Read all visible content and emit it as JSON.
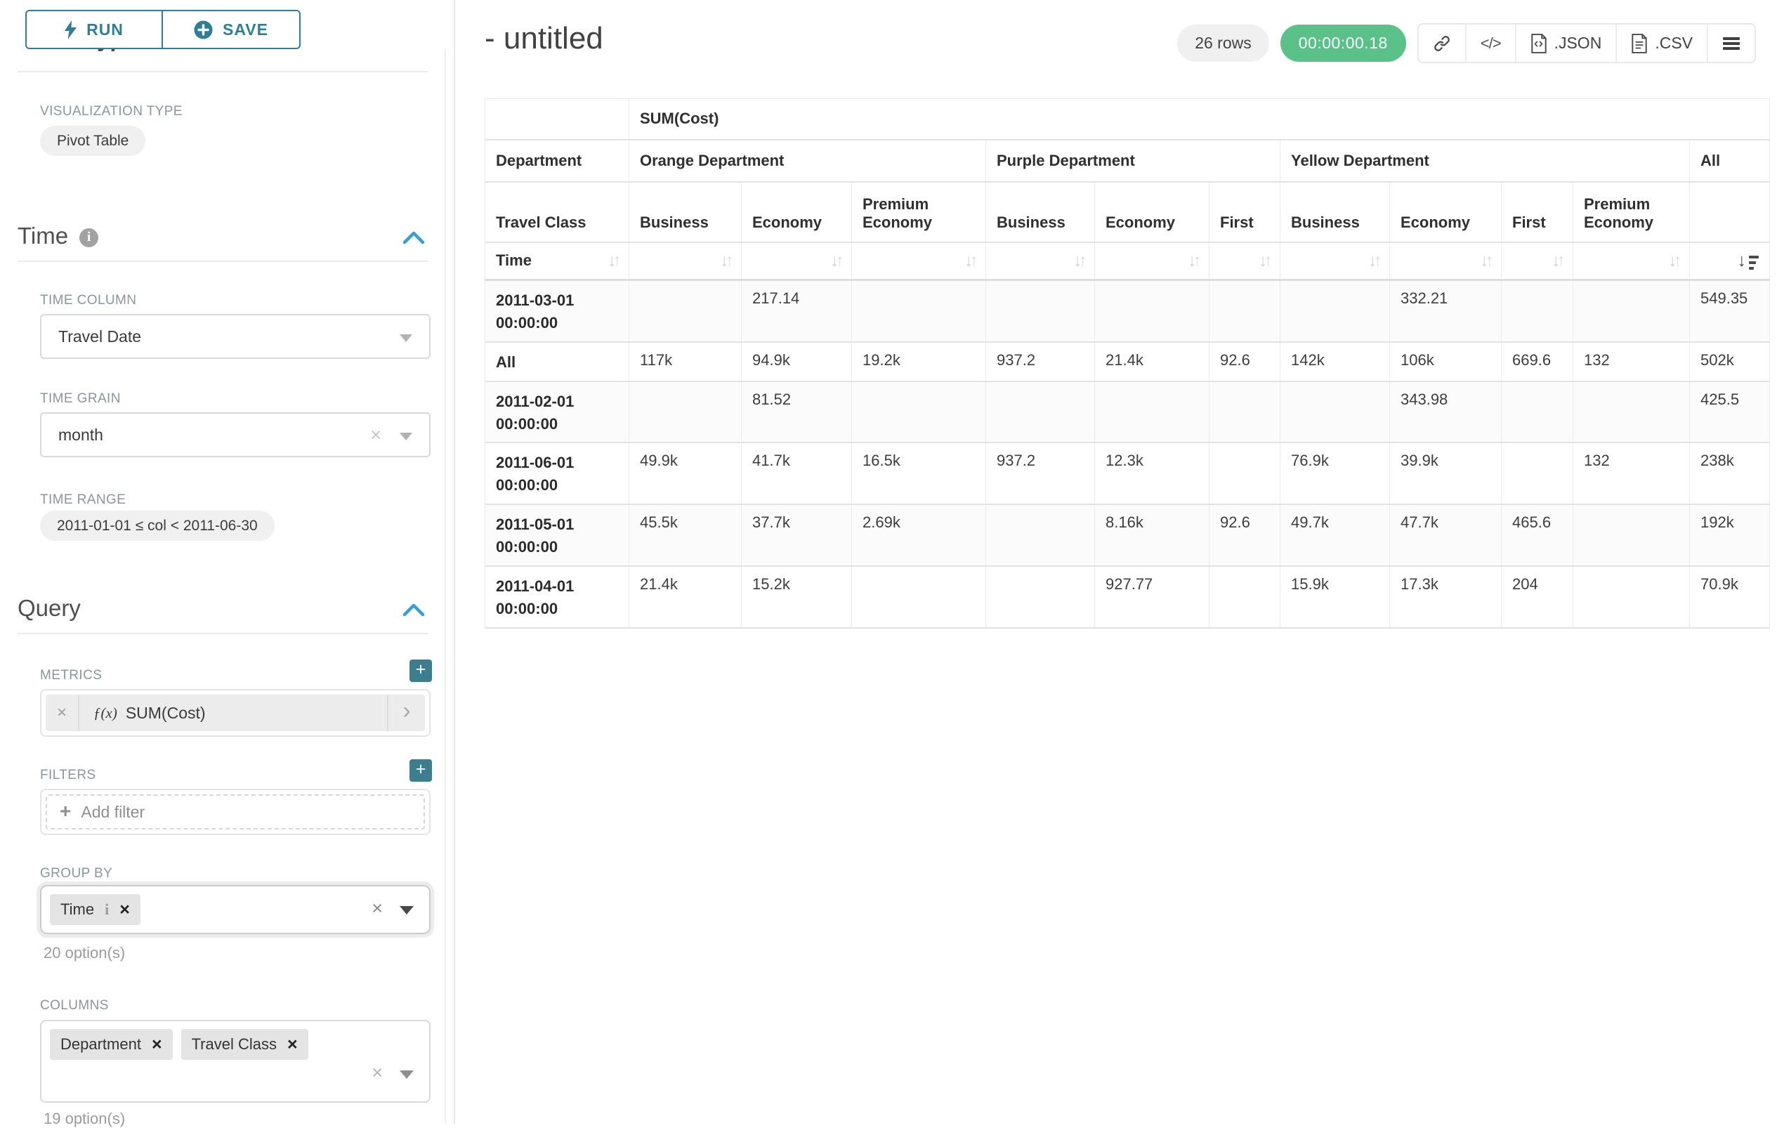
{
  "sidebar": {
    "run_label": "RUN",
    "save_label": "SAVE",
    "chart_type_heading": "Chart Type",
    "visualization_type_label": "VISUALIZATION TYPE",
    "visualization_type_value": "Pivot Table",
    "time_section": {
      "title": "Time",
      "time_column_label": "TIME COLUMN",
      "time_column_value": "Travel Date",
      "time_grain_label": "TIME GRAIN",
      "time_grain_value": "month",
      "time_range_label": "TIME RANGE",
      "time_range_value": "2011-01-01 ≤ col < 2011-06-30"
    },
    "query_section": {
      "title": "Query",
      "metrics_label": "METRICS",
      "metric_fx": "ƒ(x)",
      "metric_value": "SUM(Cost)",
      "filters_label": "FILTERS",
      "add_filter_label": "Add filter",
      "group_by_label": "GROUP BY",
      "group_by_tags": [
        "Time"
      ],
      "group_by_options_note": "20 option(s)",
      "columns_label": "COLUMNS",
      "columns_tags": [
        "Department",
        "Travel Class"
      ],
      "columns_options_note": "19 option(s)"
    }
  },
  "header": {
    "title": "- untitled",
    "row_count": "26 rows",
    "query_time": "00:00:00.18",
    "json_label": ".JSON",
    "csv_label": ".CSV"
  },
  "chart_data": {
    "type": "table",
    "metric_header": "SUM(Cost)",
    "row_header_labels": {
      "department": "Department",
      "travel_class": "Travel Class",
      "time": "Time"
    },
    "column_groups": [
      {
        "department": "Orange Department",
        "classes": [
          "Business",
          "Economy",
          "Premium Economy"
        ]
      },
      {
        "department": "Purple Department",
        "classes": [
          "Business",
          "Economy",
          "First"
        ]
      },
      {
        "department": "Yellow Department",
        "classes": [
          "Business",
          "Economy",
          "First",
          "Premium Economy"
        ]
      },
      {
        "department": "All",
        "classes": [
          ""
        ]
      }
    ],
    "rows": [
      {
        "time": "2011-03-01 00:00:00",
        "values": [
          "",
          "217.14",
          "",
          "",
          "",
          "",
          "",
          "332.21",
          "",
          "",
          "549.35"
        ]
      },
      {
        "time": "All",
        "values": [
          "117k",
          "94.9k",
          "19.2k",
          "937.2",
          "21.4k",
          "92.6",
          "142k",
          "106k",
          "669.6",
          "132",
          "502k"
        ]
      },
      {
        "time": "2011-02-01 00:00:00",
        "values": [
          "",
          "81.52",
          "",
          "",
          "",
          "",
          "",
          "343.98",
          "",
          "",
          "425.5"
        ]
      },
      {
        "time": "2011-06-01 00:00:00",
        "values": [
          "49.9k",
          "41.7k",
          "16.5k",
          "937.2",
          "12.3k",
          "",
          "76.9k",
          "39.9k",
          "",
          "132",
          "238k"
        ]
      },
      {
        "time": "2011-05-01 00:00:00",
        "values": [
          "45.5k",
          "37.7k",
          "2.69k",
          "",
          "8.16k",
          "92.6",
          "49.7k",
          "47.7k",
          "465.6",
          "",
          "192k"
        ]
      },
      {
        "time": "2011-04-01 00:00:00",
        "values": [
          "21.4k",
          "15.2k",
          "",
          "",
          "927.77",
          "",
          "15.9k",
          "17.3k",
          "204",
          "",
          "70.9k"
        ]
      }
    ],
    "sort": {
      "active_column_index": 10,
      "direction": "desc"
    }
  }
}
